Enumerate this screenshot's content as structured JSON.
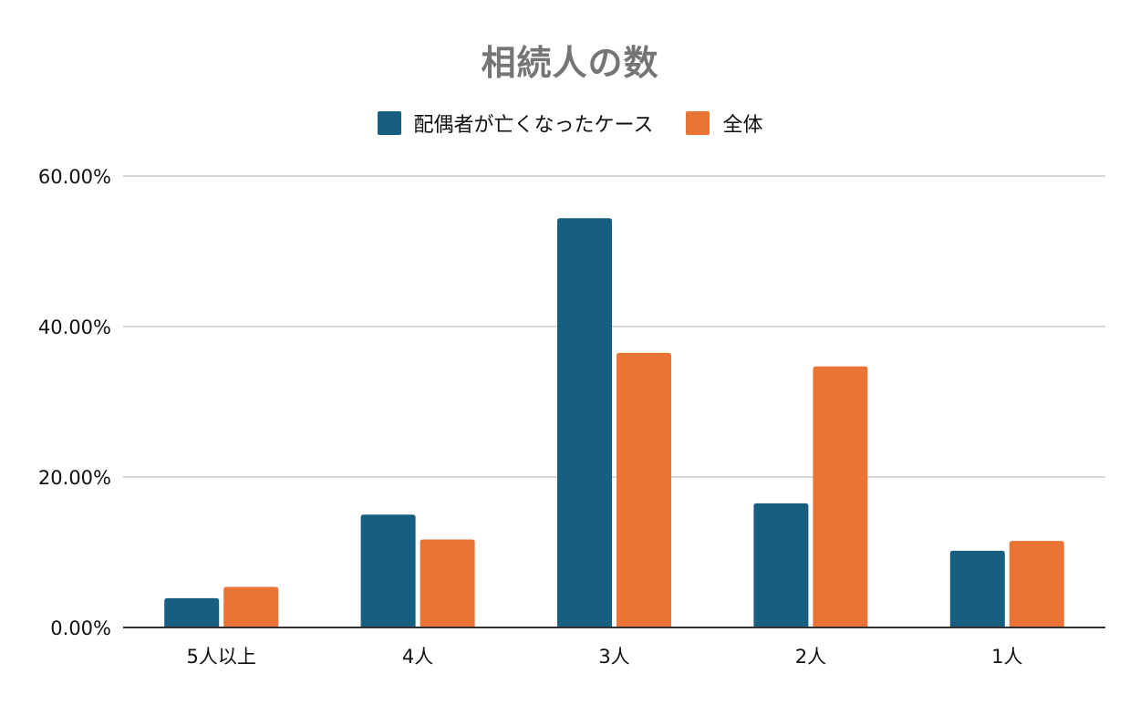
{
  "chart_data": {
    "type": "bar",
    "title": "相続人の数",
    "categories": [
      "5人以上",
      "4人",
      "3人",
      "2人",
      "1人"
    ],
    "series": [
      {
        "name": "配偶者が亡くなったケース",
        "color": "#175f80",
        "values": [
          3.9,
          15.0,
          54.4,
          16.5,
          10.2
        ]
      },
      {
        "name": "全体",
        "color": "#e97435",
        "values": [
          5.4,
          11.7,
          36.5,
          34.7,
          11.5
        ]
      }
    ],
    "ylim": [
      0,
      60
    ],
    "yticks": [
      0,
      20,
      40,
      60
    ],
    "ytick_labels": [
      "0.00%",
      "20.00%",
      "40.00%",
      "60.00%"
    ],
    "xlabel": "",
    "ylabel": "",
    "grid": true,
    "legend_position": "top-center"
  }
}
